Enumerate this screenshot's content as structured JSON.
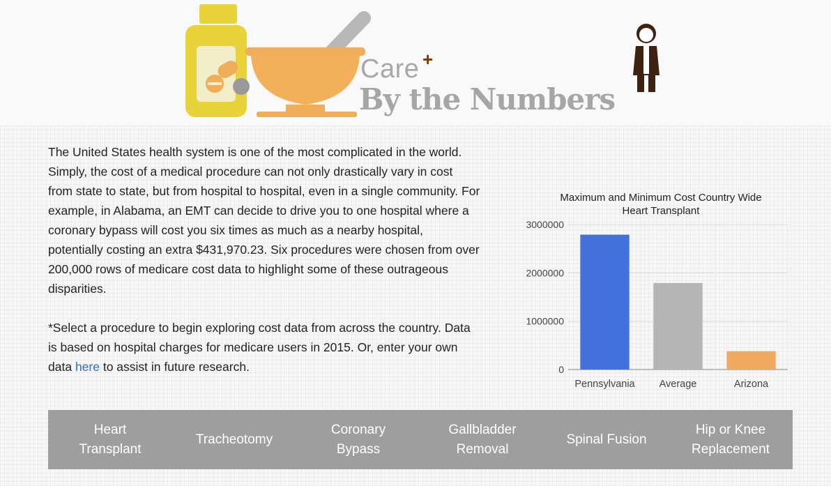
{
  "header": {
    "logo": {
      "care_text": "Care",
      "plus_text": "+",
      "subtitle_text": "By the Numbers",
      "icons": [
        "pill-bottle-icon",
        "mortar-pestle-icon",
        "doctor-icon"
      ]
    }
  },
  "intro": {
    "paragraph1": "The United States health system is one of the most complicated in the world. Simply, the cost of a medical procedure can not only drastically vary in cost from state to state, but from hospital to hospital, even in a single community. For example, in Alabama, an EMT can decide to drive you to one hospital where a coronary bypass will cost you six times as much as a nearby hospital, potentially costing an extra $431,970.23. Six procedures were chosen from over 200,000 rows of medicare cost data to highlight some of these outrageous disparities.",
    "paragraph2_before": "*Select a procedure to begin exploring cost data from across the country. Data is based on hospital charges for medicare users in 2015. Or, enter your own data ",
    "paragraph2_link": "here",
    "paragraph2_after": " to assist in future research."
  },
  "chart_data": {
    "type": "bar",
    "title": "Maximum and Minimum Cost Country Wide",
    "subtitle": "Heart Transplant",
    "categories": [
      "Pennsylvania",
      "Average",
      "Arizona"
    ],
    "values": [
      2790000,
      1790000,
      380000
    ],
    "colors": [
      "#4472dc",
      "#b5b5b5",
      "#f0aa60"
    ],
    "ylim": [
      0,
      3000000
    ],
    "yticks": [
      0,
      1000000,
      2000000,
      3000000
    ],
    "ytick_labels": [
      "0",
      "1000000",
      "2000000",
      "3000000"
    ],
    "grid": true,
    "legend": false
  },
  "nav": {
    "items": [
      {
        "label": "Heart Transplant"
      },
      {
        "label": "Tracheotomy"
      },
      {
        "label": "Coronary Bypass"
      },
      {
        "label": "Gallbladder Removal"
      },
      {
        "label": "Spinal Fusion"
      },
      {
        "label": "Hip or Knee Replacement"
      }
    ]
  },
  "colors": {
    "nav_background": "#9e9e9e",
    "link": "#2a6fc9",
    "bottle_yellow": "#e8d43a",
    "bowl_orange": "#f0ae5a"
  }
}
